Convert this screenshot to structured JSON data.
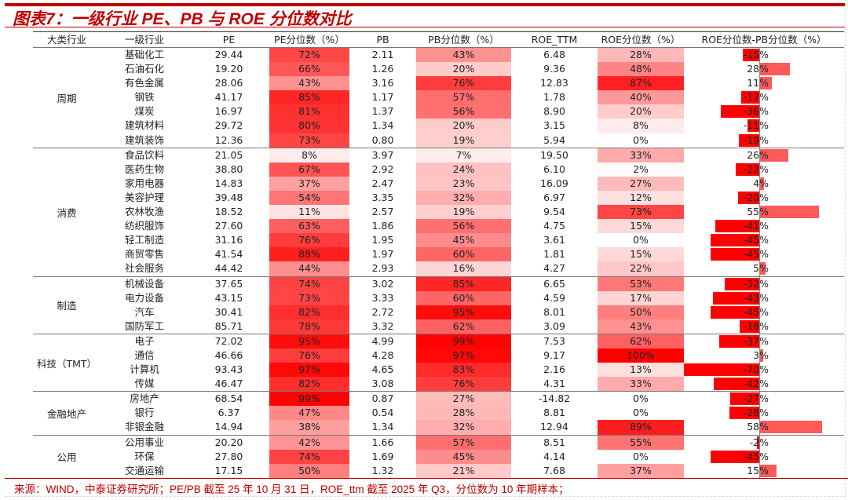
{
  "title": "图表7：一级行业 PE、PB 与 ROE 分位数对比",
  "headers": [
    "大类行业",
    "一级行业",
    "PE",
    "PE分位数（%）",
    "PB",
    "PB分位数（%）",
    "ROE_TTM",
    "ROE分位数（%）",
    "ROE分位数-PB分位数（%）"
  ],
  "colors": {
    "heat_max": "#ff0000",
    "bar_negative": "#ff0000",
    "bar_positive": "#ff5a5a",
    "title": "#c00000"
  },
  "groups": [
    {
      "name": "周期",
      "rows": [
        {
          "industry": "基础化工",
          "pe": "29.44",
          "pe_pct": 72,
          "pb": "2.11",
          "pb_pct": 43,
          "roe": "6.48",
          "roe_pct": 28,
          "diff": -15
        },
        {
          "industry": "石油石化",
          "pe": "19.20",
          "pe_pct": 66,
          "pb": "1.26",
          "pb_pct": 20,
          "roe": "9.36",
          "roe_pct": 48,
          "diff": 28
        },
        {
          "industry": "有色金属",
          "pe": "28.06",
          "pe_pct": 43,
          "pb": "3.16",
          "pb_pct": 76,
          "roe": "12.83",
          "roe_pct": 87,
          "diff": 11
        },
        {
          "industry": "钢铁",
          "pe": "41.17",
          "pe_pct": 85,
          "pb": "1.17",
          "pb_pct": 57,
          "roe": "1.78",
          "roe_pct": 40,
          "diff": -17
        },
        {
          "industry": "煤炭",
          "pe": "16.97",
          "pe_pct": 81,
          "pb": "1.37",
          "pb_pct": 56,
          "roe": "8.90",
          "roe_pct": 20,
          "diff": -36
        },
        {
          "industry": "建筑材料",
          "pe": "29.72",
          "pe_pct": 80,
          "pb": "1.34",
          "pb_pct": 20,
          "roe": "3.15",
          "roe_pct": 8,
          "diff": -11
        },
        {
          "industry": "建筑装饰",
          "pe": "12.36",
          "pe_pct": 73,
          "pb": "0.80",
          "pb_pct": 19,
          "roe": "5.94",
          "roe_pct": 0,
          "diff": -19
        }
      ]
    },
    {
      "name": "消费",
      "rows": [
        {
          "industry": "食品饮料",
          "pe": "21.05",
          "pe_pct": 8,
          "pb": "3.97",
          "pb_pct": 7,
          "roe": "19.50",
          "roe_pct": 33,
          "diff": 26
        },
        {
          "industry": "医药生物",
          "pe": "38.80",
          "pe_pct": 67,
          "pb": "2.92",
          "pb_pct": 24,
          "roe": "6.10",
          "roe_pct": 2,
          "diff": -22
        },
        {
          "industry": "家用电器",
          "pe": "14.83",
          "pe_pct": 37,
          "pb": "2.47",
          "pb_pct": 23,
          "roe": "16.09",
          "roe_pct": 27,
          "diff": 4
        },
        {
          "industry": "美容护理",
          "pe": "39.48",
          "pe_pct": 54,
          "pb": "3.35",
          "pb_pct": 32,
          "roe": "6.97",
          "roe_pct": 12,
          "diff": -20
        },
        {
          "industry": "农林牧渔",
          "pe": "18.52",
          "pe_pct": 11,
          "pb": "2.57",
          "pb_pct": 19,
          "roe": "9.54",
          "roe_pct": 73,
          "diff": 55
        },
        {
          "industry": "纺织服饰",
          "pe": "27.60",
          "pe_pct": 63,
          "pb": "1.86",
          "pb_pct": 56,
          "roe": "4.75",
          "roe_pct": 15,
          "diff": -41
        },
        {
          "industry": "轻工制造",
          "pe": "31.16",
          "pe_pct": 76,
          "pb": "1.95",
          "pb_pct": 45,
          "roe": "3.61",
          "roe_pct": 0,
          "diff": -45
        },
        {
          "industry": "商贸零售",
          "pe": "41.54",
          "pe_pct": 88,
          "pb": "1.97",
          "pb_pct": 60,
          "roe": "1.81",
          "roe_pct": 15,
          "diff": -45
        },
        {
          "industry": "社会服务",
          "pe": "44.42",
          "pe_pct": 44,
          "pb": "2.93",
          "pb_pct": 16,
          "roe": "4.27",
          "roe_pct": 22,
          "diff": 5
        }
      ]
    },
    {
      "name": "制造",
      "rows": [
        {
          "industry": "机械设备",
          "pe": "37.65",
          "pe_pct": 74,
          "pb": "3.02",
          "pb_pct": 85,
          "roe": "6.65",
          "roe_pct": 53,
          "diff": -32
        },
        {
          "industry": "电力设备",
          "pe": "43.15",
          "pe_pct": 73,
          "pb": "3.33",
          "pb_pct": 60,
          "roe": "4.59",
          "roe_pct": 17,
          "diff": -43
        },
        {
          "industry": "汽车",
          "pe": "30.41",
          "pe_pct": 82,
          "pb": "2.72",
          "pb_pct": 95,
          "roe": "8.01",
          "roe_pct": 50,
          "diff": -45
        },
        {
          "industry": "国防军工",
          "pe": "85.71",
          "pe_pct": 78,
          "pb": "3.32",
          "pb_pct": 62,
          "roe": "3.09",
          "roe_pct": 43,
          "diff": -18
        }
      ]
    },
    {
      "name": "科技（TMT）",
      "rows": [
        {
          "industry": "电子",
          "pe": "72.02",
          "pe_pct": 95,
          "pb": "4.99",
          "pb_pct": 99,
          "roe": "7.53",
          "roe_pct": 62,
          "diff": -37
        },
        {
          "industry": "通信",
          "pe": "46.66",
          "pe_pct": 76,
          "pb": "4.28",
          "pb_pct": 97,
          "roe": "9.17",
          "roe_pct": 100,
          "diff": 3
        },
        {
          "industry": "计算机",
          "pe": "93.43",
          "pe_pct": 97,
          "pb": "4.65",
          "pb_pct": 83,
          "roe": "2.16",
          "roe_pct": 13,
          "diff": -70
        },
        {
          "industry": "传媒",
          "pe": "46.47",
          "pe_pct": 82,
          "pb": "3.08",
          "pb_pct": 76,
          "roe": "4.31",
          "roe_pct": 33,
          "diff": -42
        }
      ]
    },
    {
      "name": "金融地产",
      "rows": [
        {
          "industry": "房地产",
          "pe": "68.54",
          "pe_pct": 99,
          "pb": "0.87",
          "pb_pct": 27,
          "roe": "-14.82",
          "roe_pct": 0,
          "diff": -27
        },
        {
          "industry": "银行",
          "pe": "6.37",
          "pe_pct": 47,
          "pb": "0.54",
          "pb_pct": 28,
          "roe": "8.81",
          "roe_pct": 0,
          "diff": -28
        },
        {
          "industry": "非银金融",
          "pe": "14.94",
          "pe_pct": 38,
          "pb": "1.34",
          "pb_pct": 32,
          "roe": "12.94",
          "roe_pct": 89,
          "diff": 58
        }
      ]
    },
    {
      "name": "公用",
      "rows": [
        {
          "industry": "公用事业",
          "pe": "20.20",
          "pe_pct": 42,
          "pb": "1.66",
          "pb_pct": 57,
          "roe": "8.51",
          "roe_pct": 55,
          "diff": -2
        },
        {
          "industry": "环保",
          "pe": "27.80",
          "pe_pct": 74,
          "pb": "1.69",
          "pb_pct": 45,
          "roe": "4.14",
          "roe_pct": 0,
          "diff": -45
        },
        {
          "industry": "交通运输",
          "pe": "17.15",
          "pe_pct": 50,
          "pb": "1.32",
          "pb_pct": 21,
          "roe": "7.68",
          "roe_pct": 37,
          "diff": 15
        }
      ]
    }
  ],
  "footer": "来源：WIND，中泰证券研究所；PE/PB 截至 25 年 10 月 31 日，ROE_ttm 截至 2025 年 Q3，分位数为 10 年期样本；"
}
